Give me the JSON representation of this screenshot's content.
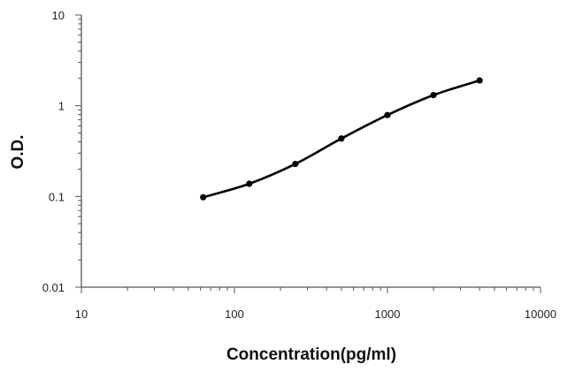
{
  "chart_data": {
    "type": "line",
    "x": [
      62.5,
      125,
      250,
      500,
      1000,
      2000,
      4000
    ],
    "series": [
      {
        "values": [
          0.098,
          0.138,
          0.228,
          0.435,
          0.79,
          1.31,
          1.9
        ]
      }
    ],
    "xlabel": "Concentration(pg/ml)",
    "ylabel": "O.D.",
    "xscale": "log",
    "yscale": "log",
    "xlim": [
      10,
      10000
    ],
    "ylim": [
      0.01,
      10
    ],
    "xticks": [
      "10",
      "100",
      "1000",
      "10000"
    ],
    "yticks": [
      "0.01",
      "0.1",
      "1",
      "10"
    ],
    "grid": false,
    "legend": "none",
    "colors": {
      "line": "#000000",
      "marker": "#000000",
      "axis": "#555555"
    }
  }
}
